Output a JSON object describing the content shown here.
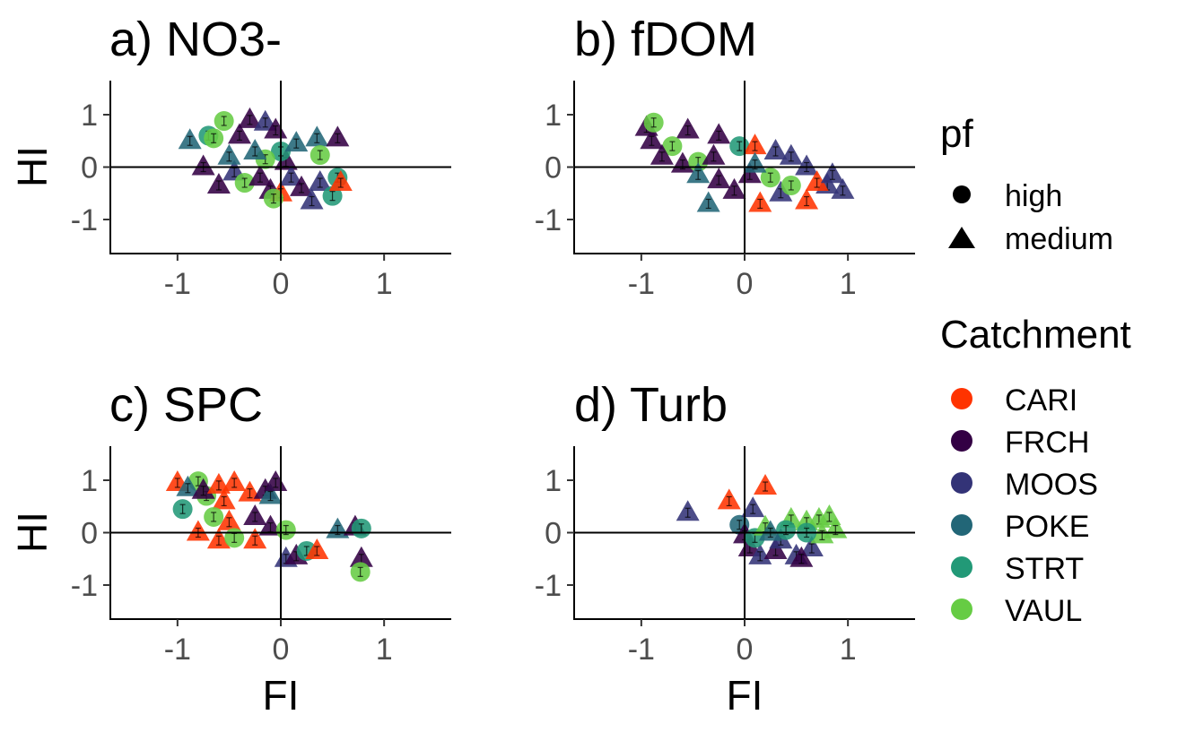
{
  "legend": {
    "shape": {
      "title": "pf",
      "items": [
        {
          "label": "high",
          "shape": "circle"
        },
        {
          "label": "medium",
          "shape": "triangle"
        }
      ]
    },
    "color": {
      "title": "Catchment",
      "items": [
        {
          "label": "CARI",
          "color": "#FF3300"
        },
        {
          "label": "FRCH",
          "color": "#330044"
        },
        {
          "label": "MOOS",
          "color": "#333377"
        },
        {
          "label": "POKE",
          "color": "#226677"
        },
        {
          "label": "STRT",
          "color": "#229977"
        },
        {
          "label": "VAUL",
          "color": "#66CC44"
        }
      ]
    }
  },
  "chart_data": [
    {
      "type": "scatter",
      "title": "a) NO3-",
      "xlabel": "",
      "ylabel": "HI",
      "xlim": [
        -1.65,
        1.65
      ],
      "ylim": [
        -1.65,
        1.65
      ],
      "xticks": [
        "-1",
        "0",
        "1"
      ],
      "yticks": [
        "-1",
        "0",
        "1"
      ],
      "reference_lines": {
        "x": 0,
        "y": 0
      },
      "points": [
        {
          "c": "POKE",
          "s": "triangle",
          "x": -0.88,
          "y": 0.5
        },
        {
          "c": "STRT",
          "s": "circle",
          "x": -0.7,
          "y": 0.6
        },
        {
          "c": "VAUL",
          "s": "circle",
          "x": -0.55,
          "y": 0.88
        },
        {
          "c": "VAUL",
          "s": "circle",
          "x": -0.65,
          "y": 0.55
        },
        {
          "c": "FRCH",
          "s": "triangle",
          "x": -0.4,
          "y": 0.6
        },
        {
          "c": "FRCH",
          "s": "triangle",
          "x": -0.3,
          "y": 0.9
        },
        {
          "c": "MOOS",
          "s": "triangle",
          "x": -0.15,
          "y": 0.85
        },
        {
          "c": "FRCH",
          "s": "triangle",
          "x": -0.05,
          "y": 0.7
        },
        {
          "c": "FRCH",
          "s": "triangle",
          "x": -0.75,
          "y": 0.0
        },
        {
          "c": "FRCH",
          "s": "triangle",
          "x": -0.6,
          "y": -0.35
        },
        {
          "c": "MOOS",
          "s": "triangle",
          "x": -0.45,
          "y": -0.1
        },
        {
          "c": "POKE",
          "s": "triangle",
          "x": -0.5,
          "y": 0.2
        },
        {
          "c": "VAUL",
          "s": "circle",
          "x": -0.35,
          "y": -0.3
        },
        {
          "c": "FRCH",
          "s": "triangle",
          "x": -0.2,
          "y": -0.2
        },
        {
          "c": "FRCH",
          "s": "triangle",
          "x": -0.1,
          "y": -0.45
        },
        {
          "c": "CARI",
          "s": "triangle",
          "x": 0.0,
          "y": -0.5
        },
        {
          "c": "VAUL",
          "s": "circle",
          "x": -0.07,
          "y": -0.6
        },
        {
          "c": "FRCH",
          "s": "triangle",
          "x": 0.05,
          "y": 0.1
        },
        {
          "c": "STRT",
          "s": "circle",
          "x": 0.0,
          "y": 0.3
        },
        {
          "c": "POKE",
          "s": "triangle",
          "x": 0.15,
          "y": 0.45
        },
        {
          "c": "MOOS",
          "s": "triangle",
          "x": 0.1,
          "y": -0.2
        },
        {
          "c": "FRCH",
          "s": "triangle",
          "x": 0.2,
          "y": -0.4
        },
        {
          "c": "MOOS",
          "s": "triangle",
          "x": 0.3,
          "y": -0.65
        },
        {
          "c": "MOOS",
          "s": "triangle",
          "x": 0.38,
          "y": -0.3
        },
        {
          "c": "POKE",
          "s": "triangle",
          "x": 0.35,
          "y": 0.55
        },
        {
          "c": "FRCH",
          "s": "triangle",
          "x": 0.55,
          "y": 0.55
        },
        {
          "c": "VAUL",
          "s": "circle",
          "x": 0.38,
          "y": 0.23
        },
        {
          "c": "STRT",
          "s": "circle",
          "x": 0.55,
          "y": -0.2
        },
        {
          "c": "STRT",
          "s": "circle",
          "x": 0.5,
          "y": -0.55
        },
        {
          "c": "CARI",
          "s": "triangle",
          "x": 0.58,
          "y": -0.3
        },
        {
          "c": "VAUL",
          "s": "circle",
          "x": -0.15,
          "y": 0.15
        },
        {
          "c": "POKE",
          "s": "triangle",
          "x": -0.25,
          "y": 0.3
        }
      ]
    },
    {
      "type": "scatter",
      "title": "b) fDOM",
      "xlabel": "",
      "ylabel": "",
      "xlim": [
        -1.65,
        1.65
      ],
      "ylim": [
        -1.65,
        1.65
      ],
      "xticks": [
        "-1",
        "0",
        "1"
      ],
      "yticks": [
        "-1",
        "0",
        "1"
      ],
      "reference_lines": {
        "x": 0,
        "y": 0
      },
      "points": [
        {
          "c": "FRCH",
          "s": "triangle",
          "x": -0.95,
          "y": 0.75
        },
        {
          "c": "FRCH",
          "s": "triangle",
          "x": -0.9,
          "y": 0.5
        },
        {
          "c": "VAUL",
          "s": "circle",
          "x": -0.88,
          "y": 0.85
        },
        {
          "c": "FRCH",
          "s": "triangle",
          "x": -0.55,
          "y": 0.7
        },
        {
          "c": "VAUL",
          "s": "circle",
          "x": -0.7,
          "y": 0.4
        },
        {
          "c": "FRCH",
          "s": "triangle",
          "x": -0.8,
          "y": 0.2
        },
        {
          "c": "FRCH",
          "s": "triangle",
          "x": -0.6,
          "y": 0.05
        },
        {
          "c": "FRCH",
          "s": "triangle",
          "x": -0.25,
          "y": 0.6
        },
        {
          "c": "VAUL",
          "s": "circle",
          "x": -0.45,
          "y": 0.1
        },
        {
          "c": "FRCH",
          "s": "triangle",
          "x": -0.3,
          "y": 0.2
        },
        {
          "c": "STRT",
          "s": "circle",
          "x": -0.05,
          "y": 0.4
        },
        {
          "c": "CARI",
          "s": "triangle",
          "x": 0.1,
          "y": 0.4
        },
        {
          "c": "MOOS",
          "s": "triangle",
          "x": 0.3,
          "y": 0.3
        },
        {
          "c": "MOOS",
          "s": "triangle",
          "x": 0.45,
          "y": 0.2
        },
        {
          "c": "MOOS",
          "s": "triangle",
          "x": 0.6,
          "y": 0.0
        },
        {
          "c": "POKE",
          "s": "triangle",
          "x": -0.45,
          "y": -0.15
        },
        {
          "c": "FRCH",
          "s": "triangle",
          "x": -0.25,
          "y": -0.25
        },
        {
          "c": "POKE",
          "s": "triangle",
          "x": -0.35,
          "y": -0.7
        },
        {
          "c": "FRCH",
          "s": "triangle",
          "x": -0.1,
          "y": -0.45
        },
        {
          "c": "CARI",
          "s": "triangle",
          "x": 0.15,
          "y": -0.7
        },
        {
          "c": "MOOS",
          "s": "triangle",
          "x": 0.35,
          "y": -0.5
        },
        {
          "c": "CARI",
          "s": "triangle",
          "x": 0.6,
          "y": -0.65
        },
        {
          "c": "MOOS",
          "s": "triangle",
          "x": 0.8,
          "y": -0.35
        },
        {
          "c": "MOOS",
          "s": "triangle",
          "x": 0.95,
          "y": -0.45
        },
        {
          "c": "VAUL",
          "s": "circle",
          "x": 0.45,
          "y": -0.35
        },
        {
          "c": "CARI",
          "s": "triangle",
          "x": 0.7,
          "y": -0.3
        },
        {
          "c": "FRCH",
          "s": "triangle",
          "x": 0.05,
          "y": -0.15
        },
        {
          "c": "VAUL",
          "s": "circle",
          "x": 0.25,
          "y": -0.2
        },
        {
          "c": "POKE",
          "s": "triangle",
          "x": 0.1,
          "y": 0.05
        },
        {
          "c": "MOOS",
          "s": "triangle",
          "x": 0.85,
          "y": -0.15
        }
      ]
    },
    {
      "type": "scatter",
      "title": "c) SPC",
      "xlabel": "FI",
      "ylabel": "HI",
      "xlim": [
        -1.65,
        1.65
      ],
      "ylim": [
        -1.65,
        1.65
      ],
      "xticks": [
        "-1",
        "0",
        "1"
      ],
      "yticks": [
        "-1",
        "0",
        "1"
      ],
      "reference_lines": {
        "x": 0,
        "y": 0
      },
      "points": [
        {
          "c": "CARI",
          "s": "triangle",
          "x": -1.0,
          "y": 0.95
        },
        {
          "c": "VAUL",
          "s": "circle",
          "x": -0.8,
          "y": 0.98
        },
        {
          "c": "STRT",
          "s": "circle",
          "x": -0.95,
          "y": 0.45
        },
        {
          "c": "POKE",
          "s": "triangle",
          "x": -0.9,
          "y": 0.85
        },
        {
          "c": "VAUL",
          "s": "circle",
          "x": -0.72,
          "y": 0.7
        },
        {
          "c": "FRCH",
          "s": "triangle",
          "x": -0.75,
          "y": 0.8
        },
        {
          "c": "CARI",
          "s": "triangle",
          "x": -0.6,
          "y": 0.9
        },
        {
          "c": "CARI",
          "s": "triangle",
          "x": -0.45,
          "y": 0.95
        },
        {
          "c": "CARI",
          "s": "triangle",
          "x": -0.3,
          "y": 0.75
        },
        {
          "c": "FRCH",
          "s": "triangle",
          "x": -0.15,
          "y": 0.8
        },
        {
          "c": "CARI",
          "s": "triangle",
          "x": -0.55,
          "y": 0.6
        },
        {
          "c": "POKE",
          "s": "triangle",
          "x": -0.1,
          "y": 0.7
        },
        {
          "c": "FRCH",
          "s": "triangle",
          "x": -0.05,
          "y": 0.95
        },
        {
          "c": "VAUL",
          "s": "circle",
          "x": -0.65,
          "y": 0.3
        },
        {
          "c": "CARI",
          "s": "triangle",
          "x": -0.5,
          "y": 0.2
        },
        {
          "c": "CARI",
          "s": "triangle",
          "x": -0.8,
          "y": 0.0
        },
        {
          "c": "CARI",
          "s": "triangle",
          "x": -0.6,
          "y": -0.15
        },
        {
          "c": "VAUL",
          "s": "circle",
          "x": -0.45,
          "y": -0.1
        },
        {
          "c": "FRCH",
          "s": "triangle",
          "x": -0.25,
          "y": 0.3
        },
        {
          "c": "CARI",
          "s": "triangle",
          "x": -0.25,
          "y": -0.15
        },
        {
          "c": "FRCH",
          "s": "triangle",
          "x": -0.1,
          "y": 0.1
        },
        {
          "c": "VAUL",
          "s": "circle",
          "x": 0.05,
          "y": 0.05
        },
        {
          "c": "MOOS",
          "s": "triangle",
          "x": 0.05,
          "y": -0.5
        },
        {
          "c": "FRCH",
          "s": "triangle",
          "x": 0.15,
          "y": -0.45
        },
        {
          "c": "STRT",
          "s": "circle",
          "x": 0.25,
          "y": -0.35
        },
        {
          "c": "CARI",
          "s": "triangle",
          "x": 0.35,
          "y": -0.35
        },
        {
          "c": "POKE",
          "s": "triangle",
          "x": 0.55,
          "y": 0.05
        },
        {
          "c": "FRCH",
          "s": "triangle",
          "x": 0.72,
          "y": 0.1
        },
        {
          "c": "STRT",
          "s": "circle",
          "x": 0.78,
          "y": 0.08
        },
        {
          "c": "FRCH",
          "s": "triangle",
          "x": 0.78,
          "y": -0.5
        },
        {
          "c": "VAUL",
          "s": "circle",
          "x": 0.77,
          "y": -0.75
        }
      ]
    },
    {
      "type": "scatter",
      "title": "d) Turb",
      "xlabel": "FI",
      "ylabel": "",
      "xlim": [
        -1.65,
        1.65
      ],
      "ylim": [
        -1.65,
        1.65
      ],
      "xticks": [
        "-1",
        "0",
        "1"
      ],
      "yticks": [
        "-1",
        "0",
        "1"
      ],
      "reference_lines": {
        "x": 0,
        "y": 0
      },
      "points": [
        {
          "c": "MOOS",
          "s": "triangle",
          "x": -0.55,
          "y": 0.38
        },
        {
          "c": "CARI",
          "s": "triangle",
          "x": -0.15,
          "y": 0.6
        },
        {
          "c": "CARI",
          "s": "triangle",
          "x": 0.2,
          "y": 0.88
        },
        {
          "c": "POKE",
          "s": "circle",
          "x": -0.05,
          "y": 0.15
        },
        {
          "c": "MOOS",
          "s": "triangle",
          "x": 0.08,
          "y": 0.45
        },
        {
          "c": "FRCH",
          "s": "triangle",
          "x": 0.0,
          "y": -0.05
        },
        {
          "c": "FRCH",
          "s": "triangle",
          "x": 0.05,
          "y": -0.3
        },
        {
          "c": "MOOS",
          "s": "triangle",
          "x": 0.15,
          "y": -0.45
        },
        {
          "c": "STRT",
          "s": "circle",
          "x": 0.1,
          "y": -0.1
        },
        {
          "c": "VAUL",
          "s": "triangle",
          "x": 0.2,
          "y": 0.1
        },
        {
          "c": "FRCH",
          "s": "triangle",
          "x": 0.3,
          "y": -0.35
        },
        {
          "c": "MOOS",
          "s": "triangle",
          "x": 0.35,
          "y": -0.15
        },
        {
          "c": "VAUL",
          "s": "triangle",
          "x": 0.45,
          "y": 0.25
        },
        {
          "c": "STRT",
          "s": "circle",
          "x": 0.4,
          "y": 0.05
        },
        {
          "c": "MOOS",
          "s": "triangle",
          "x": 0.5,
          "y": -0.45
        },
        {
          "c": "VAUL",
          "s": "triangle",
          "x": 0.6,
          "y": 0.2
        },
        {
          "c": "MOOS",
          "s": "triangle",
          "x": 0.65,
          "y": -0.3
        },
        {
          "c": "VAUL",
          "s": "triangle",
          "x": 0.72,
          "y": 0.25
        },
        {
          "c": "VAUL",
          "s": "triangle",
          "x": 0.82,
          "y": 0.3
        },
        {
          "c": "VAUL",
          "s": "triangle",
          "x": 0.88,
          "y": 0.05
        },
        {
          "c": "FRCH",
          "s": "triangle",
          "x": 0.55,
          "y": -0.5
        },
        {
          "c": "VAUL",
          "s": "triangle",
          "x": 0.75,
          "y": -0.05
        },
        {
          "c": "POKE",
          "s": "triangle",
          "x": 0.25,
          "y": 0.0
        },
        {
          "c": "STRT",
          "s": "circle",
          "x": 0.6,
          "y": 0.0
        }
      ]
    }
  ]
}
